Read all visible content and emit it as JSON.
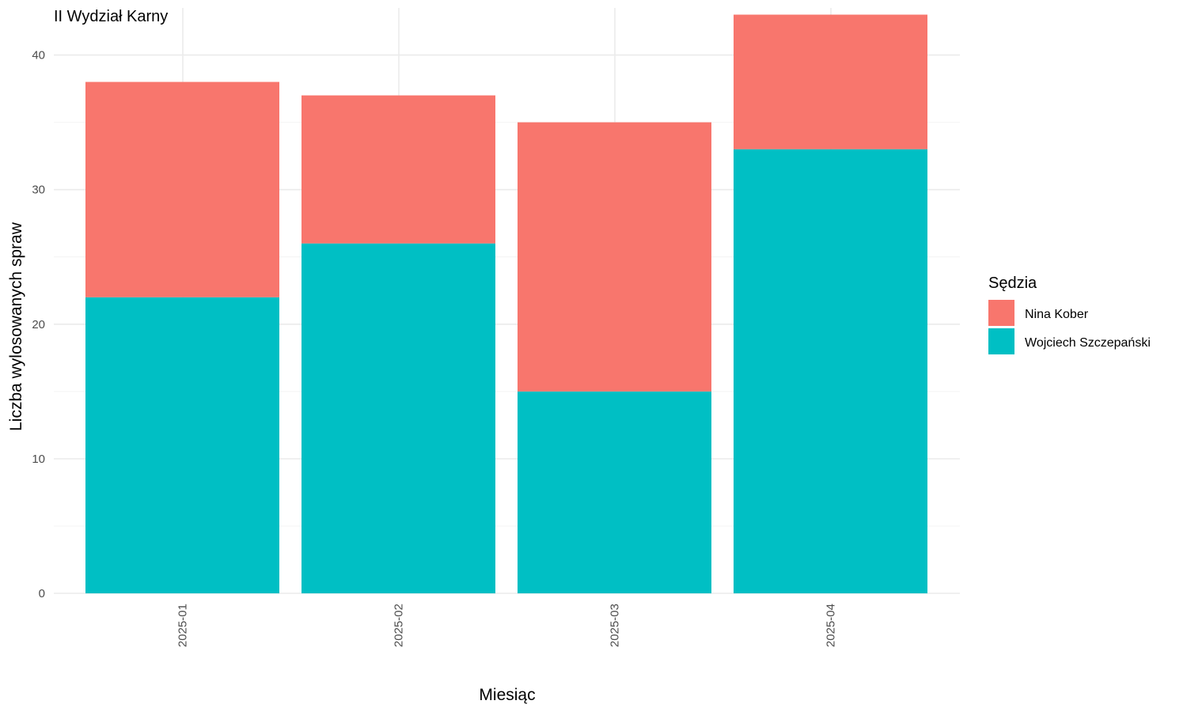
{
  "chart_data": {
    "type": "bar",
    "stacked": true,
    "title": "II Wydział Karny",
    "xlabel": "Miesiąc",
    "ylabel": "Liczba wylosowanych spraw",
    "categories": [
      "2025-01",
      "2025-02",
      "2025-03",
      "2025-04"
    ],
    "series": [
      {
        "name": "Wojciech Szczepański",
        "color": "#00BFC4",
        "values": [
          22,
          26,
          15,
          33
        ]
      },
      {
        "name": "Nina Kober",
        "color": "#F8766D",
        "values": [
          16,
          11,
          20,
          10
        ]
      }
    ],
    "ylim": [
      0,
      44
    ],
    "yticks": [
      0,
      10,
      20,
      30,
      40
    ],
    "grid": true,
    "legend": {
      "title": "Sędzia",
      "placement": "right",
      "order": [
        "Nina Kober",
        "Wojciech Szczepański"
      ]
    }
  }
}
